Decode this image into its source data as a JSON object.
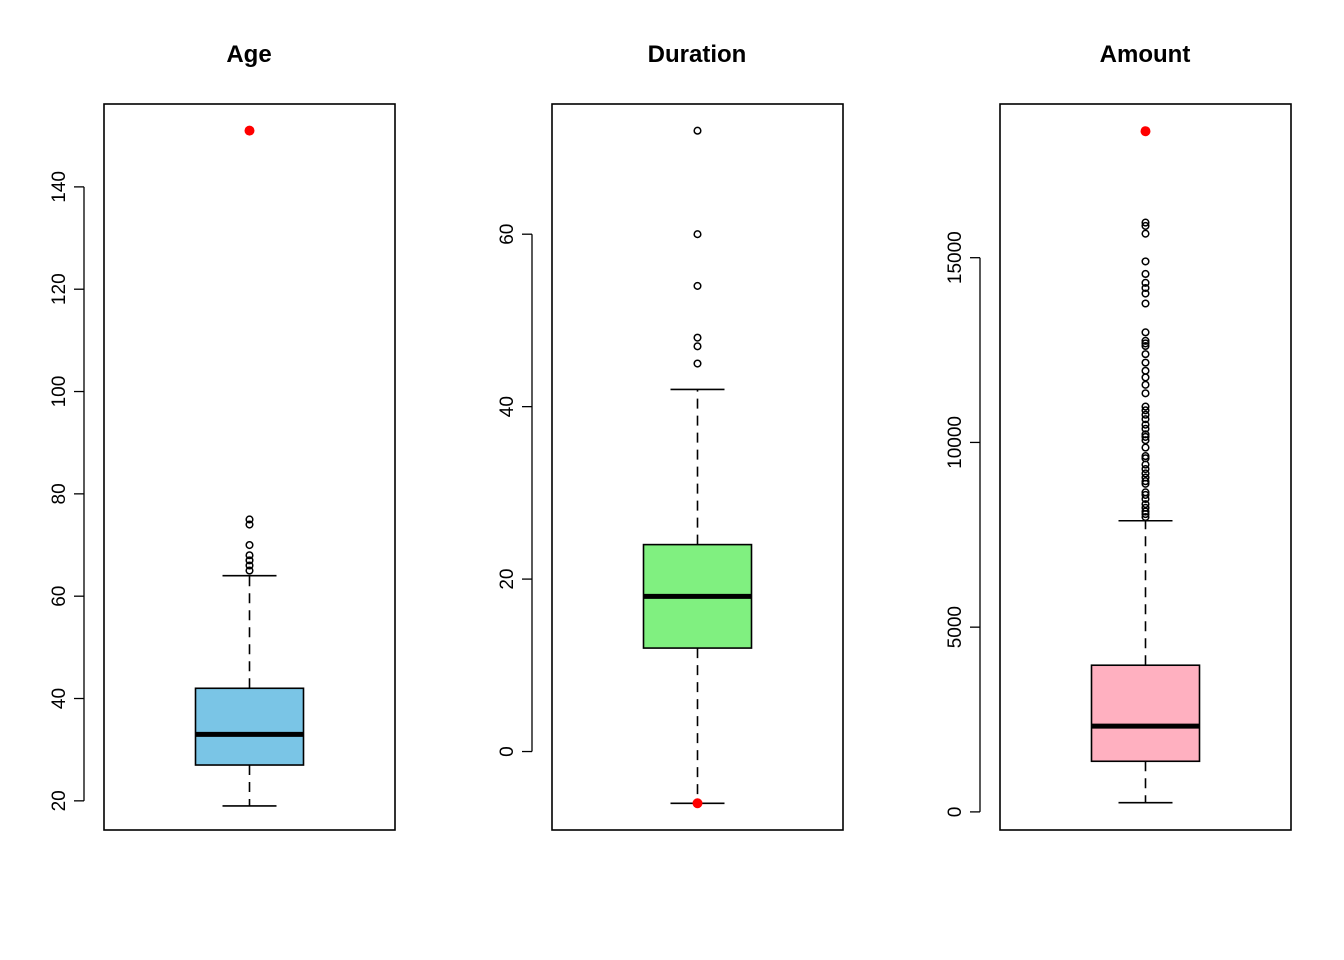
{
  "chart_data": [
    {
      "type": "box",
      "title": "Age",
      "ylim": [
        14.3,
        156.2
      ],
      "yticks": [
        20,
        40,
        60,
        80,
        100,
        120,
        140
      ],
      "box_color": "#7AC5E6",
      "whisker_low": 19,
      "q1": 27,
      "median": 33,
      "q3": 42,
      "whisker_high": 64,
      "outliers": [
        65,
        66,
        67,
        68,
        70,
        74,
        75
      ],
      "highlighted_outliers": [
        151
      ],
      "highlight_color": "#FF0000"
    },
    {
      "type": "box",
      "title": "Duration",
      "ylim": [
        -9.1,
        75.1
      ],
      "yticks": [
        0,
        20,
        40,
        60
      ],
      "box_color": "#80F080",
      "whisker_low": -6,
      "q1": 12,
      "median": 18,
      "q3": 24,
      "whisker_high": 42,
      "outliers": [
        45,
        47,
        48,
        54,
        60,
        72
      ],
      "highlighted_outliers": [
        -6
      ],
      "highlight_color": "#FF0000"
    },
    {
      "type": "box",
      "title": "Amount",
      "ylim": [
        -490,
        19160
      ],
      "yticks": [
        0,
        5000,
        10000,
        15000
      ],
      "box_color": "#FFB0C0",
      "whisker_low": 250,
      "q1": 1370,
      "median": 2320,
      "q3": 3970,
      "whisker_high": 7880,
      "outliers": [
        7980,
        8060,
        8130,
        8230,
        8330,
        8470,
        8580,
        8650,
        8880,
        8950,
        9050,
        9160,
        9280,
        9400,
        9570,
        9630,
        9860,
        10060,
        10150,
        10220,
        10370,
        10480,
        10630,
        10750,
        10870,
        10970,
        11330,
        11560,
        11760,
        11940,
        12160,
        12390,
        12610,
        12680,
        12750,
        12980,
        13760,
        14030,
        14180,
        14320,
        14560,
        14900,
        15650,
        15860,
        15950
      ],
      "highlighted_outliers": [
        18424
      ],
      "highlight_color": "#FF0000"
    }
  ]
}
